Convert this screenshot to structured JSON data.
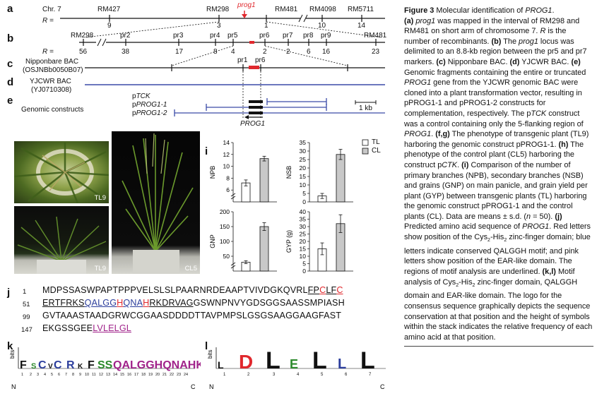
{
  "panels": {
    "a": "a",
    "b": "b",
    "c": "c",
    "d": "d",
    "e": "e",
    "f": "f",
    "g": "g",
    "h": "h",
    "i": "i",
    "j": "j",
    "k": "k",
    "l": "l"
  },
  "map_a": {
    "chr": "Chr. 7",
    "r_label": "R =",
    "gene": "prog1",
    "markers": [
      {
        "name": "RM427",
        "r": "9"
      },
      {
        "name": "RM298",
        "r": "3"
      },
      {
        "name": "RM481",
        "r": "1"
      },
      {
        "name": "RM4098",
        "r": "10"
      },
      {
        "name": "RM5711",
        "r": "14"
      }
    ]
  },
  "map_b": {
    "r_label": "R =",
    "markers": [
      {
        "name": "RM298",
        "r": "56"
      },
      {
        "name": "pr2",
        "r": "38"
      },
      {
        "name": "pr3",
        "r": "17"
      },
      {
        "name": "pr4",
        "r": "8"
      },
      {
        "name": "pr5",
        "r": "4"
      },
      {
        "name": "pr6",
        "r": "2"
      },
      {
        "name": "pr7",
        "r": "2"
      },
      {
        "name": "pr8",
        "r": "6"
      },
      {
        "name": "pr9",
        "r": "16"
      },
      {
        "name": "RM481",
        "r": "23"
      }
    ]
  },
  "panel_c": {
    "line1": "Nipponbare BAC",
    "line2": "(OSJNBb0050B07)",
    "pr1": "pr1",
    "pr6": "pr6"
  },
  "panel_d": {
    "line1": "YJCWR BAC",
    "line2": "(YJ0710308)"
  },
  "panel_e": {
    "label": "Genomic constructs",
    "constructs": [
      "pTCK",
      "pPROG1-1",
      "pPROG1-2"
    ],
    "construct_prefix": "p",
    "construct_names": [
      "TCK",
      "PROG1-1",
      "PROG1-2"
    ],
    "scale": "1 kb",
    "gene": "PROG1"
  },
  "photos": {
    "f_tag": "TL9",
    "g_tag": "TL9",
    "h_tag": "CL5"
  },
  "chart_data": [
    {
      "type": "bar",
      "ylabel": "NPB",
      "categories": [
        "TL",
        "CL"
      ],
      "values": [
        7.2,
        11.3
      ],
      "errors": [
        0.5,
        0.4
      ],
      "ylim": [
        4,
        14
      ],
      "yticks": [
        6,
        8,
        10,
        12,
        14
      ],
      "axis_break": true
    },
    {
      "type": "bar",
      "ylabel": "NSB",
      "categories": [
        "TL",
        "CL"
      ],
      "values": [
        3.5,
        28.0
      ],
      "errors": [
        1.5,
        3.0
      ],
      "ylim": [
        0,
        35
      ],
      "yticks": [
        0,
        5,
        10,
        15,
        20,
        25,
        30,
        35
      ]
    },
    {
      "type": "bar",
      "ylabel": "GNP",
      "categories": [
        "TL",
        "CL"
      ],
      "values": [
        30,
        150
      ],
      "errors": [
        5,
        13
      ],
      "ylim": [
        0,
        200
      ],
      "yticks": [
        50,
        100,
        150,
        200
      ],
      "axis_break": true
    },
    {
      "type": "bar",
      "ylabel": "GYP (g)",
      "categories": [
        "TL",
        "CL"
      ],
      "values": [
        15,
        32
      ],
      "errors": [
        4,
        6
      ],
      "ylim": [
        0,
        40
      ],
      "yticks": [
        0,
        5,
        10,
        15,
        20,
        25,
        30,
        35,
        40
      ]
    }
  ],
  "legend": {
    "tl": "TL",
    "cl": "CL"
  },
  "sequence": {
    "rows": [
      {
        "num": "1",
        "segments": [
          {
            "text": "MDPSSASWPAPTPPPVELSLSLPAARNRDEAAPTVIVDGKQVRL",
            "style": ""
          },
          {
            "text": "FP",
            "style": "ul"
          },
          {
            "text": "C",
            "style": "red ul"
          },
          {
            "text": "LF",
            "style": "ul"
          },
          {
            "text": "C",
            "style": "red ul"
          }
        ]
      },
      {
        "num": "51",
        "segments": [
          {
            "text": "ERTFRKS",
            "style": "ul"
          },
          {
            "text": "QALGG",
            "style": "blue ul"
          },
          {
            "text": "H",
            "style": "red ul"
          },
          {
            "text": "QNA",
            "style": "blue ul"
          },
          {
            "text": "H",
            "style": "red ul"
          },
          {
            "text": "RKDRVAG",
            "style": "ul"
          },
          {
            "text": "GSWNPNVYGDSGGSAASSMPIASH",
            "style": ""
          }
        ]
      },
      {
        "num": "99",
        "segments": [
          {
            "text": "GVTAAASTAADGRWCGGAASDDDDTTAVPMPSLGSGSAAGGAAGFAST",
            "style": ""
          }
        ]
      },
      {
        "num": "147",
        "segments": [
          {
            "text": "EKGSSGEE",
            "style": ""
          },
          {
            "text": "LVLELGL",
            "style": "pink ul"
          }
        ]
      }
    ]
  },
  "logo_k": {
    "bits": "bits",
    "n": "N",
    "c": "C"
  },
  "logo_l": {
    "bits": "bits",
    "n": "N",
    "c": "C",
    "letters": [
      "L",
      "D",
      "L",
      "E",
      "L",
      "L",
      "L"
    ]
  },
  "caption": {
    "fig": "Figure 3",
    "title": " Molecular identification of PROG1.",
    "body": "(a) prog1 was mapped in the interval of RM298 and RM481 on short arm of chromosome 7. R is the number of recombinants. (b) The prog1 locus was delimited to an 8.8-kb region between the pr5 and pr7 markers. (c) Nipponbare BAC. (d) YJCWR BAC. (e) Genomic fragments containing the entire or truncated PROG1 gene from the YJCWR genomic BAC were cloned into a plant transformation vector, resulting in pPROG1-1 and pPROG1-2 constructs for complementation, respectively. The pTCK construct was a control containing only the 5-flanking region of PROG1. (f,g) The phenotype of transgenic plant (TL9) harboring the genomic construct pPROG1-1. (h) The phenotype of the control plant (CL5) harboring the construct pCTK. (i) Comparison of the number of primary branches (NPB), secondary branches (NSB) and grains (GNP) on main panicle, and grain yield per plant (GYP) between transgenic plants (TL) harboring the genomic construct pPROG1-1 and the control plants (CL). Data are means ± s.d. (n = 50). (j) Predicted amino acid sequence of PROG1. Red letters show position of the Cys2-His2 zinc-finger domain; blue letters indicate conserved QALGGH motif; and pink letters show position of the EAR-like domain. The regions of motif analysis are underlined. (k,l) Motif analysis of Cys2-His2 zinc-finger domain, QALGGH domain and EAR-like domain. The logo for the consensus sequence graphically depicts the sequence conservation at that position and the height of symbols within the stack indicates the relative frequency of each amino acid at that position."
  }
}
